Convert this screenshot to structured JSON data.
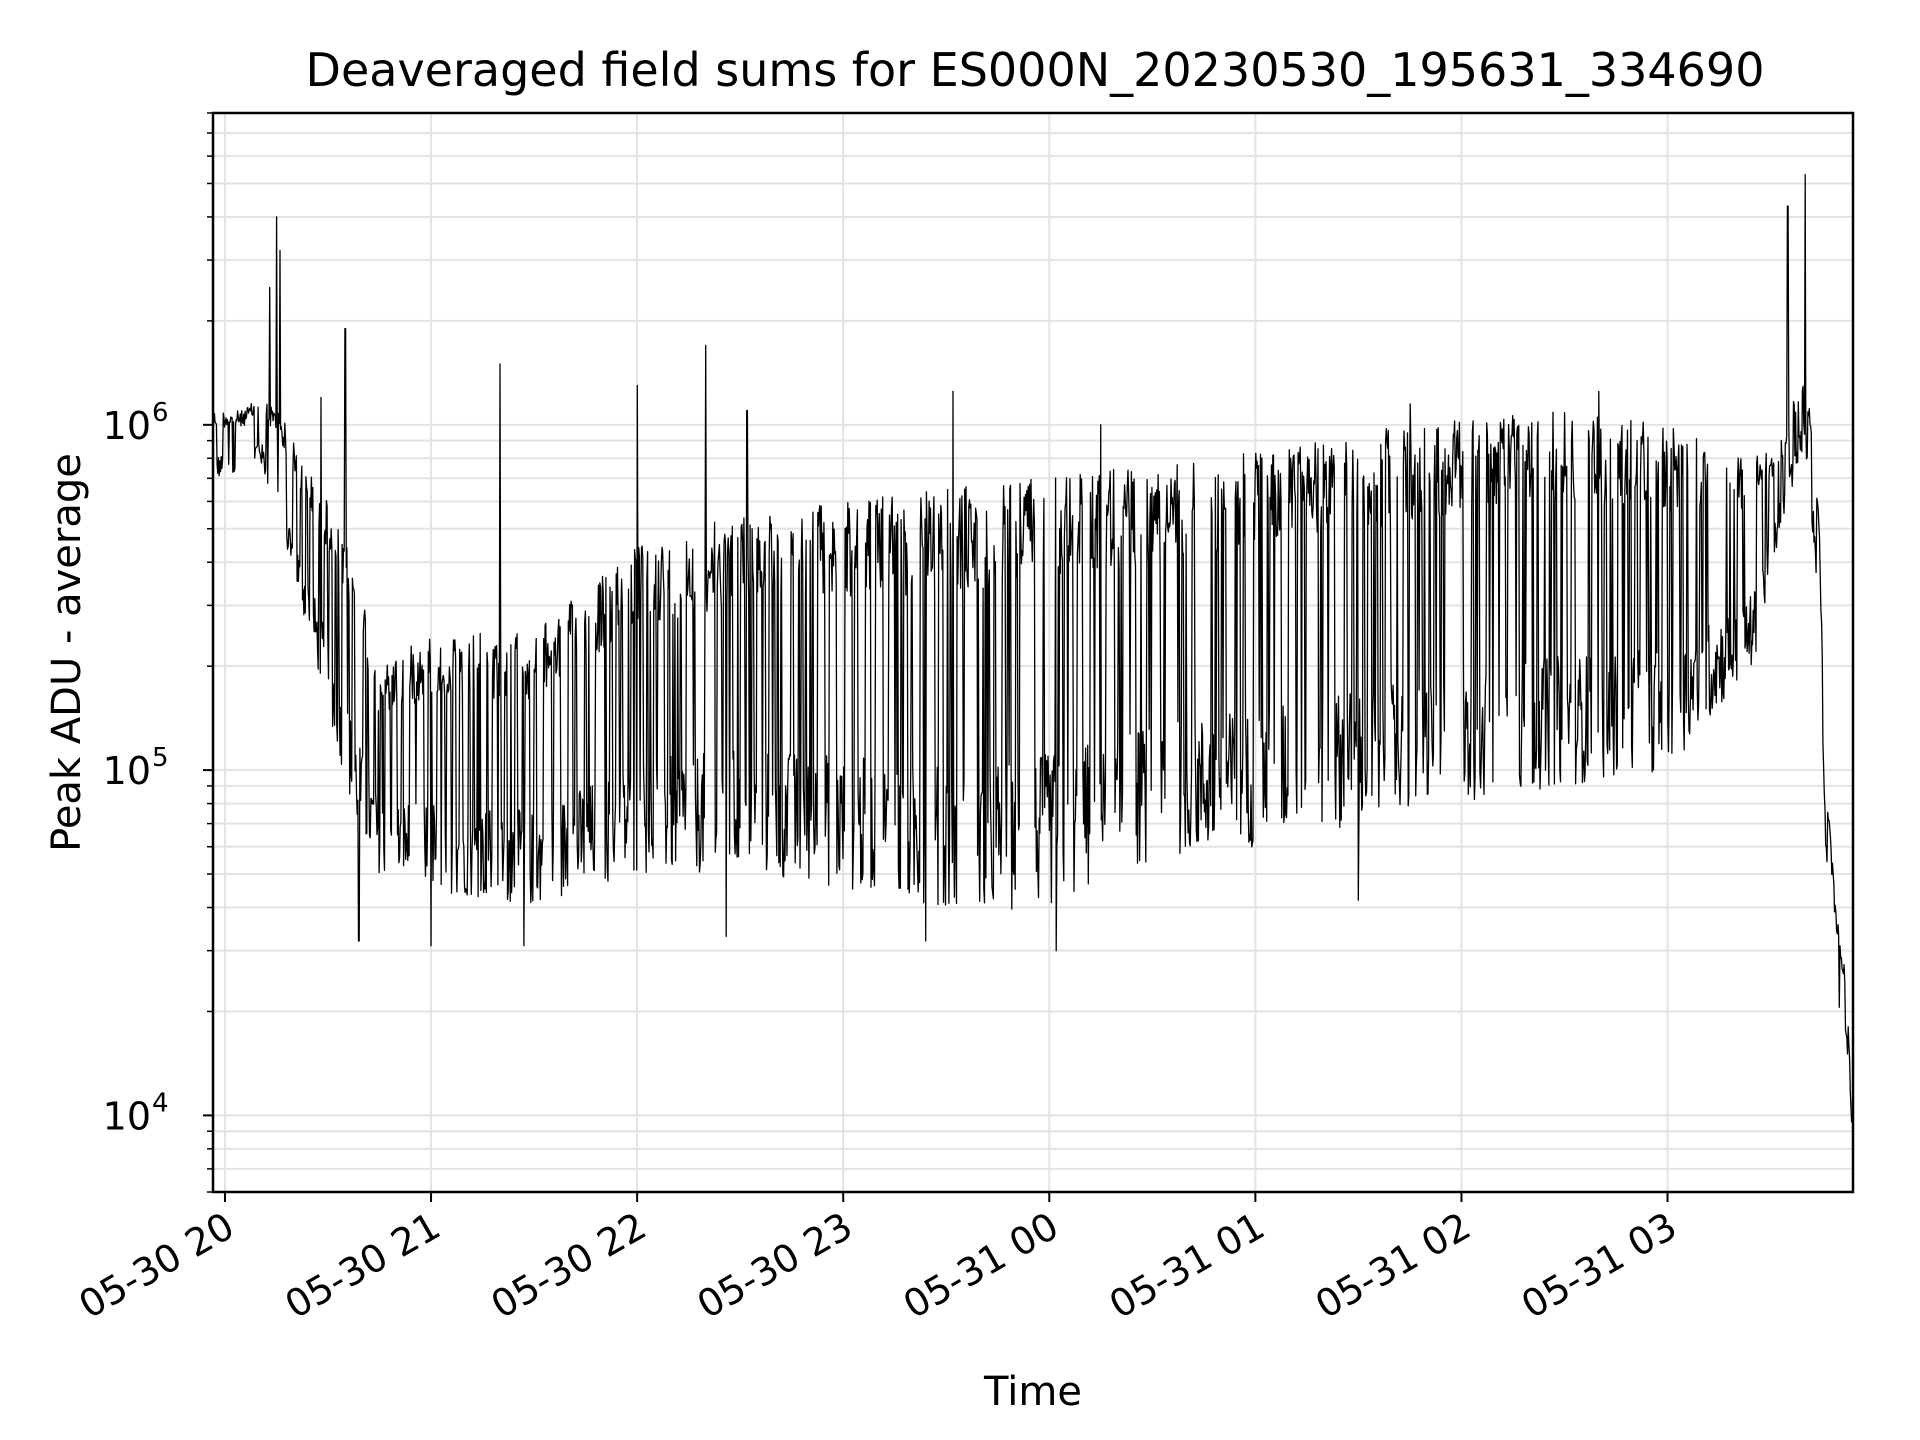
{
  "chart_data": {
    "type": "line",
    "title": "Deaveraged field sums for ES000N_20230530_195631_334690",
    "xlabel": "Time",
    "ylabel": "Peak ADU - average",
    "x_axis": {
      "kind": "datetime",
      "range": [
        "2023-05-30T19:56:31",
        "2023-05-31T03:54:00"
      ],
      "ticks": [
        {
          "at": "2023-05-30T20:00",
          "label": "05-30 20"
        },
        {
          "at": "2023-05-30T21:00",
          "label": "05-30 21"
        },
        {
          "at": "2023-05-30T22:00",
          "label": "05-30 22"
        },
        {
          "at": "2023-05-30T23:00",
          "label": "05-30 23"
        },
        {
          "at": "2023-05-31T00:00",
          "label": "05-31 00"
        },
        {
          "at": "2023-05-31T01:00",
          "label": "05-31 01"
        },
        {
          "at": "2023-05-31T02:00",
          "label": "05-31 02"
        },
        {
          "at": "2023-05-31T03:00",
          "label": "05-31 03"
        }
      ]
    },
    "y_axis": {
      "scale": "log",
      "range": [
        6000,
        8000000
      ],
      "ticks": [
        {
          "value": 10000,
          "base": "10",
          "exp": "4"
        },
        {
          "value": 100000,
          "base": "10",
          "exp": "5"
        },
        {
          "value": 1000000,
          "base": "10",
          "exp": "6"
        }
      ]
    },
    "grid": true,
    "series": [
      {
        "color": "#000000",
        "profile": [
          {
            "t": "2023-05-30T19:56:31",
            "low": 700000,
            "high": 1100000
          },
          {
            "t": "2023-05-30T20:05",
            "low": 700000,
            "high": 1100000
          },
          {
            "t": "2023-05-30T20:10",
            "low": 800000,
            "high": 1200000
          },
          {
            "t": "2023-05-30T20:16",
            "low": 500000,
            "high": 1100000
          },
          {
            "t": "2023-05-30T20:22",
            "low": 300000,
            "high": 800000
          },
          {
            "t": "2023-05-30T20:30",
            "low": 150000,
            "high": 600000
          },
          {
            "t": "2023-05-30T20:38",
            "low": 70000,
            "high": 400000
          },
          {
            "t": "2023-05-30T20:45",
            "low": 50000,
            "high": 200000
          },
          {
            "t": "2023-05-30T21:00",
            "low": 45000,
            "high": 250000
          },
          {
            "t": "2023-05-30T21:30",
            "low": 40000,
            "high": 250000
          },
          {
            "t": "2023-05-30T22:00",
            "low": 50000,
            "high": 450000
          },
          {
            "t": "2023-05-30T22:30",
            "low": 50000,
            "high": 550000
          },
          {
            "t": "2023-05-30T23:00",
            "low": 45000,
            "high": 600000
          },
          {
            "t": "2023-05-30T23:30",
            "low": 38000,
            "high": 650000
          },
          {
            "t": "2023-05-31T00:00",
            "low": 40000,
            "high": 750000
          },
          {
            "t": "2023-05-31T00:30",
            "low": 55000,
            "high": 750000
          },
          {
            "t": "2023-05-31T01:00",
            "low": 60000,
            "high": 850000
          },
          {
            "t": "2023-05-31T01:30",
            "low": 70000,
            "high": 950000
          },
          {
            "t": "2023-05-31T02:00",
            "low": 80000,
            "high": 1050000
          },
          {
            "t": "2023-05-31T02:30",
            "low": 90000,
            "high": 1100000
          },
          {
            "t": "2023-05-31T03:00",
            "low": 100000,
            "high": 1000000
          },
          {
            "t": "2023-05-31T03:25",
            "low": 200000,
            "high": 800000
          },
          {
            "t": "2023-05-31T03:33",
            "low": 500000,
            "high": 900000
          },
          {
            "t": "2023-05-31T03:40",
            "low": 900000,
            "high": 1500000
          },
          {
            "t": "2023-05-31T03:44",
            "low": 300000,
            "high": 600000
          },
          {
            "t": "2023-05-31T03:46",
            "low": 60000,
            "high": 100000
          },
          {
            "t": "2023-05-31T03:49",
            "low": 20000,
            "high": 40000
          },
          {
            "t": "2023-05-31T03:52",
            "low": 17000,
            "high": 25000
          },
          {
            "t": "2023-05-31T03:54",
            "low": 8000,
            "high": 9000
          }
        ],
        "spikes": [
          {
            "t": "2023-05-30T20:13",
            "value": 2500000
          },
          {
            "t": "2023-05-30T20:15",
            "value": 4000000
          },
          {
            "t": "2023-05-30T20:16",
            "value": 3200000
          },
          {
            "t": "2023-05-30T20:28",
            "value": 1200000
          },
          {
            "t": "2023-05-30T20:35",
            "value": 1900000
          },
          {
            "t": "2023-05-30T21:20",
            "value": 1500000
          },
          {
            "t": "2023-05-30T22:00",
            "value": 1300000
          },
          {
            "t": "2023-05-30T22:20",
            "value": 1700000
          },
          {
            "t": "2023-05-30T22:32",
            "value": 1100000
          },
          {
            "t": "2023-05-30T23:32",
            "value": 1250000
          },
          {
            "t": "2023-05-31T00:15",
            "value": 1000000
          },
          {
            "t": "2023-05-31T01:45",
            "value": 1150000
          },
          {
            "t": "2023-05-31T02:40",
            "value": 1250000
          },
          {
            "t": "2023-05-31T03:35",
            "value": 4300000
          },
          {
            "t": "2023-05-31T03:40",
            "value": 5300000
          },
          {
            "t": "2023-05-30T20:39",
            "value": 32000
          },
          {
            "t": "2023-05-30T21:00",
            "value": 31000
          },
          {
            "t": "2023-05-30T21:27",
            "value": 31000
          },
          {
            "t": "2023-05-30T22:26",
            "value": 33000
          },
          {
            "t": "2023-05-30T23:24",
            "value": 32000
          },
          {
            "t": "2023-05-31T00:02",
            "value": 30000
          },
          {
            "t": "2023-05-31T01:30",
            "value": 42000
          }
        ]
      }
    ]
  }
}
